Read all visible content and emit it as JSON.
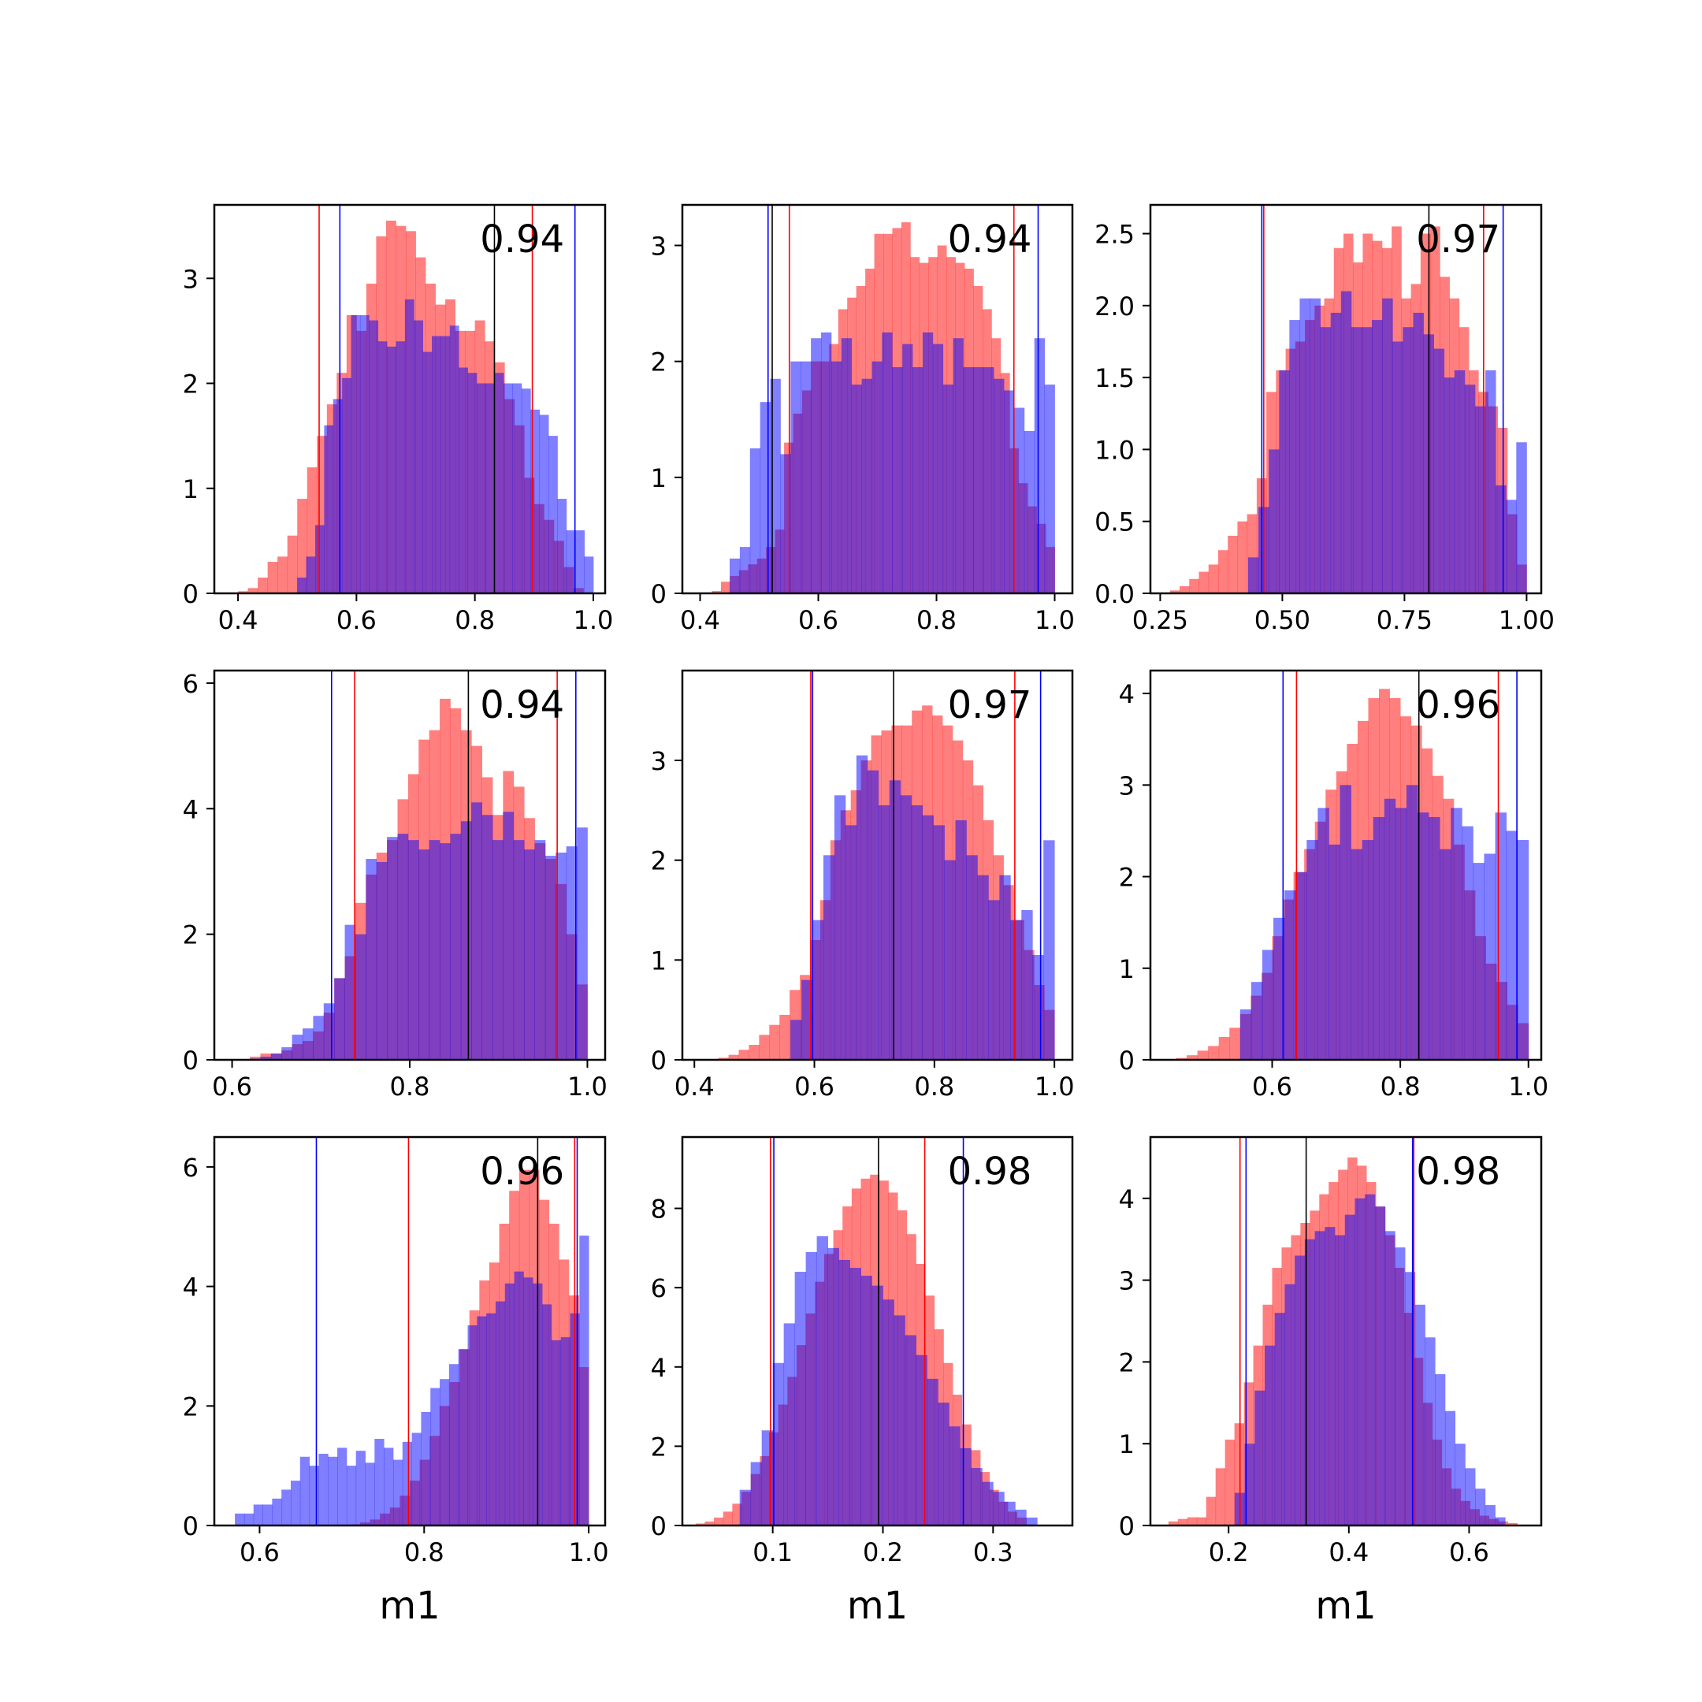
{
  "colors": {
    "red_fill": "#ff0000",
    "blue_fill": "#0000ff",
    "red_line": "#ff0000",
    "blue_line": "#0000ff",
    "black_line": "#000000"
  },
  "chart_data": [
    {
      "type": "bar",
      "subtype": "overlaid-histogram",
      "score": "0.94",
      "xlabel": "",
      "xlim": [
        0.36,
        1.02
      ],
      "ylim": [
        0,
        3.7
      ],
      "xticks": [
        "0.4",
        "0.6",
        "0.8",
        "1.0"
      ],
      "yticks": [
        "0",
        "1",
        "2",
        "3"
      ],
      "series": [
        {
          "color": "red",
          "bin_edges": [
            0.4,
            1.0
          ],
          "values": [
            0.02,
            0.05,
            0.15,
            0.3,
            0.35,
            0.55,
            0.9,
            1.2,
            1.5,
            1.8,
            2.1,
            2.65,
            2.5,
            2.95,
            3.4,
            3.55,
            3.5,
            3.45,
            3.2,
            2.95,
            2.75,
            2.8,
            2.5,
            2.5,
            2.6,
            2.4,
            2.2,
            1.85,
            1.6,
            1.1,
            0.85,
            0.7,
            0.5,
            0.25,
            0.05,
            0.0
          ]
        },
        {
          "color": "blue",
          "bin_edges": [
            0.5,
            1.0
          ],
          "values": [
            0.15,
            0.35,
            0.65,
            1.6,
            1.85,
            2.05,
            2.65,
            2.65,
            2.6,
            2.4,
            2.35,
            2.4,
            2.8,
            2.6,
            2.3,
            2.45,
            2.45,
            2.55,
            2.15,
            2.1,
            2.0,
            2.0,
            2.1,
            2.0,
            2.0,
            1.95,
            1.75,
            1.7,
            1.5,
            0.9,
            0.6,
            0.6,
            0.35
          ]
        }
      ],
      "vlines": [
        {
          "color": "red",
          "x": 0.537
        },
        {
          "color": "blue",
          "x": 0.572
        },
        {
          "color": "black",
          "x": 0.833
        },
        {
          "color": "red",
          "x": 0.897
        },
        {
          "color": "blue",
          "x": 0.969
        }
      ]
    },
    {
      "type": "bar",
      "subtype": "overlaid-histogram",
      "score": "0.94",
      "xlabel": "",
      "xlim": [
        0.37,
        1.03
      ],
      "ylim": [
        0,
        3.35
      ],
      "xticks": [
        "0.4",
        "0.6",
        "0.8",
        "1.0"
      ],
      "yticks": [
        "0",
        "1",
        "2",
        "3"
      ],
      "series": [
        {
          "color": "red",
          "bin_edges": [
            0.42,
            1.0
          ],
          "values": [
            0.02,
            0.1,
            0.15,
            0.2,
            0.25,
            0.3,
            0.4,
            0.55,
            1.3,
            1.55,
            1.75,
            2.0,
            2.0,
            2.15,
            2.45,
            2.55,
            2.65,
            2.8,
            3.1,
            3.1,
            3.15,
            3.2,
            2.9,
            2.85,
            2.9,
            3.0,
            2.9,
            2.85,
            2.8,
            2.65,
            2.45,
            2.2,
            1.9,
            1.25,
            0.95,
            0.75,
            0.6,
            0.4
          ]
        },
        {
          "color": "blue",
          "bin_edges": [
            0.45,
            1.0
          ],
          "values": [
            0.3,
            0.4,
            1.25,
            1.65,
            1.85,
            1.2,
            2.0,
            2.0,
            2.2,
            2.25,
            2.0,
            2.2,
            1.8,
            1.85,
            2.0,
            2.25,
            1.95,
            2.15,
            1.95,
            2.25,
            2.15,
            1.8,
            2.2,
            1.95,
            1.95,
            1.95,
            1.85,
            1.75,
            1.6,
            1.4,
            2.2,
            1.8
          ]
        }
      ],
      "vlines": [
        {
          "color": "blue",
          "x": 0.515
        },
        {
          "color": "black",
          "x": 0.522
        },
        {
          "color": "red",
          "x": 0.551
        },
        {
          "color": "red",
          "x": 0.931
        },
        {
          "color": "blue",
          "x": 0.972
        }
      ]
    },
    {
      "type": "bar",
      "subtype": "overlaid-histogram",
      "score": "0.97",
      "xlabel": "",
      "xlim": [
        0.23,
        1.03
      ],
      "ylim": [
        0,
        2.7
      ],
      "xticks": [
        "0.25",
        "0.50",
        "0.75",
        "1.00"
      ],
      "yticks": [
        "0.0",
        "0.5",
        "1.0",
        "1.5",
        "2.0",
        "2.5"
      ],
      "series": [
        {
          "color": "red",
          "bin_edges": [
            0.27,
            1.0
          ],
          "values": [
            0.02,
            0.05,
            0.1,
            0.15,
            0.2,
            0.3,
            0.4,
            0.5,
            0.55,
            0.8,
            1.4,
            1.55,
            1.7,
            1.75,
            1.9,
            2.0,
            2.05,
            2.4,
            2.5,
            2.3,
            2.5,
            2.45,
            2.4,
            2.55,
            2.05,
            2.15,
            2.5,
            2.55,
            2.2,
            2.05,
            1.85,
            1.55,
            1.4,
            1.3,
            1.15,
            0.55,
            0.2
          ]
        },
        {
          "color": "blue",
          "bin_edges": [
            0.43,
            1.0
          ],
          "values": [
            0.25,
            0.6,
            1.0,
            1.55,
            1.9,
            2.05,
            2.05,
            1.85,
            1.95,
            2.1,
            1.85,
            1.85,
            1.9,
            2.05,
            1.75,
            1.85,
            1.95,
            1.8,
            1.7,
            1.5,
            1.55,
            1.45,
            1.3,
            1.55,
            0.75,
            0.65,
            1.05
          ]
        }
      ],
      "vlines": [
        {
          "color": "blue",
          "x": 0.458
        },
        {
          "color": "red",
          "x": 0.462
        },
        {
          "color": "black",
          "x": 0.8
        },
        {
          "color": "red",
          "x": 0.912
        },
        {
          "color": "blue",
          "x": 0.952
        }
      ]
    },
    {
      "type": "bar",
      "subtype": "overlaid-histogram",
      "score": "0.94",
      "xlabel": "",
      "xlim": [
        0.58,
        1.02
      ],
      "ylim": [
        0,
        6.2
      ],
      "xticks": [
        "0.6",
        "0.8",
        "1.0"
      ],
      "yticks": [
        "0",
        "2",
        "4",
        "6"
      ],
      "series": [
        {
          "color": "red",
          "bin_edges": [
            0.62,
            1.0
          ],
          "values": [
            0.05,
            0.1,
            0.1,
            0.15,
            0.25,
            0.3,
            0.45,
            0.75,
            1.3,
            1.65,
            2.5,
            2.95,
            3.3,
            3.5,
            4.15,
            4.55,
            5.1,
            5.25,
            5.75,
            5.6,
            5.25,
            5.0,
            4.5,
            3.9,
            4.6,
            4.35,
            3.85,
            3.45,
            3.2,
            2.8,
            2.0,
            1.2
          ]
        },
        {
          "color": "blue",
          "bin_edges": [
            0.62,
            1.0
          ],
          "values": [
            0.02,
            0.05,
            0.1,
            0.2,
            0.4,
            0.5,
            0.7,
            0.9,
            1.3,
            2.15,
            2.0,
            3.2,
            3.15,
            3.55,
            3.6,
            3.5,
            3.35,
            3.5,
            3.45,
            3.6,
            3.8,
            4.1,
            3.9,
            3.5,
            3.95,
            3.5,
            3.35,
            3.5,
            3.25,
            3.3,
            3.4,
            3.7
          ]
        }
      ],
      "vlines": [
        {
          "color": "blue",
          "x": 0.712
        },
        {
          "color": "red",
          "x": 0.738
        },
        {
          "color": "black",
          "x": 0.866
        },
        {
          "color": "red",
          "x": 0.966
        },
        {
          "color": "blue",
          "x": 0.987
        }
      ]
    },
    {
      "type": "bar",
      "subtype": "overlaid-histogram",
      "score": "0.97",
      "xlabel": "",
      "xlim": [
        0.38,
        1.03
      ],
      "ylim": [
        0,
        3.9
      ],
      "xticks": [
        "0.4",
        "0.6",
        "0.8",
        "1.0"
      ],
      "yticks": [
        "0",
        "1",
        "2",
        "3"
      ],
      "series": [
        {
          "color": "red",
          "bin_edges": [
            0.44,
            1.0
          ],
          "values": [
            0.02,
            0.05,
            0.1,
            0.15,
            0.25,
            0.35,
            0.45,
            0.7,
            0.85,
            1.2,
            1.6,
            2.2,
            2.5,
            2.7,
            3.0,
            3.25,
            3.3,
            3.35,
            3.35,
            3.5,
            3.55,
            3.45,
            3.35,
            3.2,
            3.0,
            2.75,
            2.4,
            2.05,
            1.75,
            1.4,
            1.1,
            0.75,
            0.5
          ]
        },
        {
          "color": "blue",
          "bin_edges": [
            0.56,
            1.0
          ],
          "values": [
            0.4,
            0.8,
            1.4,
            2.05,
            2.65,
            2.35,
            3.05,
            2.9,
            2.55,
            2.8,
            2.65,
            2.55,
            2.45,
            2.35,
            2.0,
            2.4,
            2.05,
            1.85,
            1.6,
            1.85,
            1.4,
            1.5,
            1.05,
            2.2
          ]
        }
      ],
      "vlines": [
        {
          "color": "red",
          "x": 0.594
        },
        {
          "color": "blue",
          "x": 0.597
        },
        {
          "color": "black",
          "x": 0.732
        },
        {
          "color": "red",
          "x": 0.934
        },
        {
          "color": "blue",
          "x": 0.977
        }
      ]
    },
    {
      "type": "bar",
      "subtype": "overlaid-histogram",
      "score": "0.96",
      "xlabel": "",
      "xlim": [
        0.41,
        1.02
      ],
      "ylim": [
        0,
        4.25
      ],
      "xticks": [
        "0.6",
        "0.8",
        "1.0"
      ],
      "yticks": [
        "0",
        "1",
        "2",
        "3",
        "4"
      ],
      "series": [
        {
          "color": "red",
          "bin_edges": [
            0.45,
            1.0
          ],
          "values": [
            0.02,
            0.05,
            0.1,
            0.15,
            0.25,
            0.35,
            0.5,
            0.7,
            0.95,
            1.35,
            1.75,
            2.05,
            2.3,
            2.6,
            2.95,
            3.15,
            3.45,
            3.7,
            3.95,
            4.05,
            3.95,
            3.75,
            3.65,
            3.4,
            3.1,
            2.85,
            2.35,
            1.85,
            1.35,
            1.05,
            0.85,
            0.6,
            0.4
          ]
        },
        {
          "color": "blue",
          "bin_edges": [
            0.55,
            1.0
          ],
          "values": [
            0.55,
            0.85,
            1.2,
            1.55,
            1.85,
            2.05,
            2.4,
            2.75,
            2.35,
            3.0,
            2.3,
            2.4,
            2.65,
            2.85,
            2.75,
            3.0,
            2.7,
            2.65,
            2.3,
            2.75,
            2.55,
            2.15,
            2.25,
            2.7,
            2.5,
            2.4
          ]
        }
      ],
      "vlines": [
        {
          "color": "blue",
          "x": 0.617
        },
        {
          "color": "red",
          "x": 0.638
        },
        {
          "color": "black",
          "x": 0.829
        },
        {
          "color": "red",
          "x": 0.953
        },
        {
          "color": "blue",
          "x": 0.982
        }
      ]
    },
    {
      "type": "bar",
      "subtype": "overlaid-histogram",
      "score": "0.96",
      "xlabel": "m1",
      "xlim": [
        0.545,
        1.02
      ],
      "ylim": [
        0,
        6.5
      ],
      "xticks": [
        "0.6",
        "0.8",
        "1.0"
      ],
      "yticks": [
        "0",
        "2",
        "4",
        "6"
      ],
      "series": [
        {
          "color": "red",
          "bin_edges": [
            0.71,
            1.0
          ],
          "values": [
            0.02,
            0.05,
            0.1,
            0.2,
            0.3,
            0.5,
            0.75,
            1.1,
            1.5,
            2.0,
            2.4,
            2.95,
            3.6,
            4.1,
            4.4,
            5.05,
            5.6,
            5.95,
            5.95,
            5.45,
            5.05,
            4.45,
            3.85,
            2.65
          ]
        },
        {
          "color": "blue",
          "bin_edges": [
            0.57,
            1.0
          ],
          "values": [
            0.2,
            0.2,
            0.35,
            0.35,
            0.45,
            0.6,
            0.75,
            1.15,
            1.0,
            1.2,
            1.15,
            1.3,
            1.0,
            1.25,
            1.05,
            1.45,
            1.3,
            1.1,
            1.4,
            1.55,
            1.9,
            2.3,
            2.45,
            2.7,
            2.95,
            3.35,
            3.5,
            3.55,
            3.75,
            4.05,
            4.25,
            4.15,
            4.05,
            3.7,
            3.1,
            3.15,
            3.55,
            4.85
          ]
        }
      ],
      "vlines": [
        {
          "color": "blue",
          "x": 0.669
        },
        {
          "color": "red",
          "x": 0.781
        },
        {
          "color": "black",
          "x": 0.938
        },
        {
          "color": "red",
          "x": 0.983
        },
        {
          "color": "blue",
          "x": 0.986
        }
      ]
    },
    {
      "type": "bar",
      "subtype": "overlaid-histogram",
      "score": "0.98",
      "xlabel": "m1",
      "xlim": [
        0.018,
        0.372
      ],
      "ylim": [
        0,
        9.8
      ],
      "xticks": [
        "0.1",
        "0.2",
        "0.3"
      ],
      "yticks": [
        "0",
        "2",
        "4",
        "6",
        "8"
      ],
      "series": [
        {
          "color": "red",
          "bin_edges": [
            0.03,
            0.33
          ],
          "values": [
            0.05,
            0.1,
            0.2,
            0.35,
            0.55,
            0.85,
            1.3,
            1.75,
            2.35,
            3.05,
            3.75,
            4.55,
            5.35,
            6.15,
            6.85,
            7.45,
            8.05,
            8.5,
            8.75,
            8.85,
            8.7,
            8.4,
            7.95,
            7.35,
            6.6,
            5.8,
            4.95,
            4.1,
            3.3,
            2.55,
            1.9,
            1.35,
            0.9,
            0.6,
            0.35,
            0.2
          ]
        },
        {
          "color": "blue",
          "bin_edges": [
            0.07,
            0.34
          ],
          "values": [
            0.9,
            1.6,
            2.4,
            4.1,
            5.1,
            6.4,
            6.9,
            7.3,
            7.0,
            6.7,
            6.5,
            6.3,
            6.05,
            5.7,
            5.3,
            4.8,
            4.3,
            3.7,
            3.1,
            2.5,
            1.95,
            1.45,
            1.1,
            0.85,
            0.6,
            0.4,
            0.2
          ]
        }
      ],
      "vlines": [
        {
          "color": "red",
          "x": 0.098
        },
        {
          "color": "blue",
          "x": 0.101
        },
        {
          "color": "black",
          "x": 0.196
        },
        {
          "color": "red",
          "x": 0.238
        },
        {
          "color": "blue",
          "x": 0.273
        }
      ]
    },
    {
      "type": "bar",
      "subtype": "overlaid-histogram",
      "score": "0.98",
      "xlabel": "m1",
      "xlim": [
        0.07,
        0.72
      ],
      "ylim": [
        0,
        4.75
      ],
      "xticks": [
        "0.2",
        "0.4",
        "0.6"
      ],
      "yticks": [
        "0",
        "1",
        "2",
        "3",
        "4"
      ],
      "series": [
        {
          "color": "red",
          "bin_edges": [
            0.1,
            0.68
          ],
          "values": [
            0.05,
            0.08,
            0.1,
            0.1,
            0.35,
            0.7,
            1.05,
            1.25,
            1.75,
            2.2,
            2.7,
            3.15,
            3.4,
            3.55,
            3.7,
            3.85,
            4.05,
            4.2,
            4.35,
            4.5,
            4.4,
            4.2,
            3.9,
            3.55,
            3.15,
            2.6,
            2.05,
            1.5,
            1.05,
            0.7,
            0.45,
            0.3,
            0.2,
            0.12,
            0.08,
            0.05,
            0.03
          ]
        },
        {
          "color": "blue",
          "bin_edges": [
            0.21,
            0.66
          ],
          "values": [
            0.4,
            1.0,
            1.65,
            2.2,
            2.6,
            2.95,
            3.3,
            3.5,
            3.6,
            3.65,
            3.55,
            3.8,
            4.0,
            4.05,
            3.9,
            3.6,
            3.4,
            3.1,
            2.7,
            2.3,
            1.85,
            1.4,
            1.0,
            0.7,
            0.45,
            0.25,
            0.1
          ]
        }
      ],
      "vlines": [
        {
          "color": "red",
          "x": 0.219
        },
        {
          "color": "blue",
          "x": 0.229
        },
        {
          "color": "black",
          "x": 0.329
        },
        {
          "color": "blue",
          "x": 0.506
        },
        {
          "color": "red",
          "x": 0.508
        }
      ]
    }
  ]
}
